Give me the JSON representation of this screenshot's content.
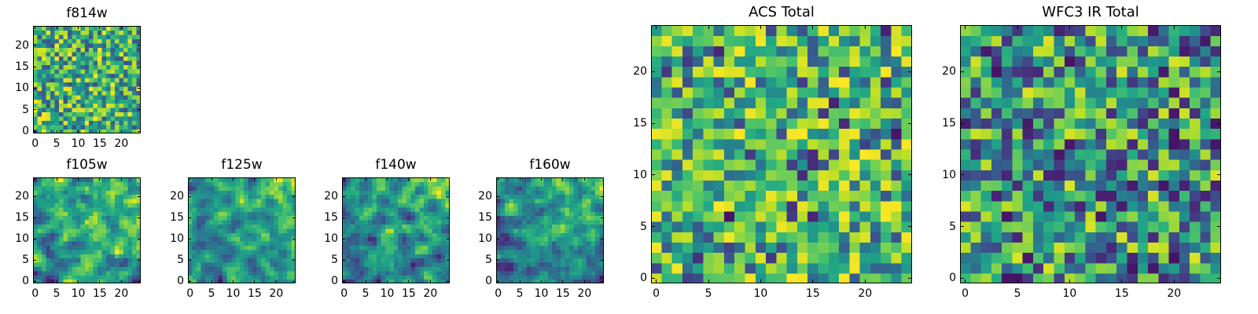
{
  "figure": {
    "grid_size": 25,
    "colormap": "viridis"
  },
  "chart_data": [
    {
      "type": "heatmap",
      "title": "f814w",
      "xticks": [
        0,
        5,
        10,
        15,
        20
      ],
      "yticks": [
        0,
        5,
        10,
        15,
        20
      ],
      "xlim": [
        -0.5,
        24.5
      ],
      "ylim": [
        -0.5,
        24.5
      ],
      "style": "noise",
      "seed": 11
    },
    {
      "type": "heatmap",
      "title": "f105w",
      "xticks": [
        0,
        5,
        10,
        15,
        20
      ],
      "yticks": [
        0,
        5,
        10,
        15,
        20
      ],
      "xlim": [
        -0.5,
        24.5
      ],
      "ylim": [
        -0.5,
        24.5
      ],
      "style": "smooth",
      "seed": 23
    },
    {
      "type": "heatmap",
      "title": "f125w",
      "xticks": [
        0,
        5,
        10,
        15,
        20
      ],
      "yticks": [
        0,
        5,
        10,
        15,
        20
      ],
      "xlim": [
        -0.5,
        24.5
      ],
      "ylim": [
        -0.5,
        24.5
      ],
      "style": "smooth",
      "seed": 37
    },
    {
      "type": "heatmap",
      "title": "f140w",
      "xticks": [
        0,
        5,
        10,
        15,
        20
      ],
      "yticks": [
        0,
        5,
        10,
        15,
        20
      ],
      "xlim": [
        -0.5,
        24.5
      ],
      "ylim": [
        -0.5,
        24.5
      ],
      "style": "smooth",
      "seed": 41
    },
    {
      "type": "heatmap",
      "title": "f160w",
      "xticks": [
        0,
        5,
        10,
        15,
        20
      ],
      "yticks": [
        0,
        5,
        10,
        15,
        20
      ],
      "xlim": [
        -0.5,
        24.5
      ],
      "ylim": [
        -0.5,
        24.5
      ],
      "style": "smooth",
      "seed": 53
    },
    {
      "type": "heatmap",
      "title": "ACS Total",
      "xticks": [
        0,
        5,
        10,
        15,
        20
      ],
      "yticks": [
        0,
        5,
        10,
        15,
        20
      ],
      "xlim": [
        -0.5,
        24.5
      ],
      "ylim": [
        -0.5,
        24.5
      ],
      "style": "bright",
      "seed": 67
    },
    {
      "type": "heatmap",
      "title": "WFC3 IR Total",
      "xticks": [
        0,
        5,
        10,
        15,
        20
      ],
      "yticks": [
        0,
        5,
        10,
        15,
        20
      ],
      "xlim": [
        -0.5,
        24.5
      ],
      "ylim": [
        -0.5,
        24.5
      ],
      "style": "mid",
      "seed": 79
    }
  ]
}
